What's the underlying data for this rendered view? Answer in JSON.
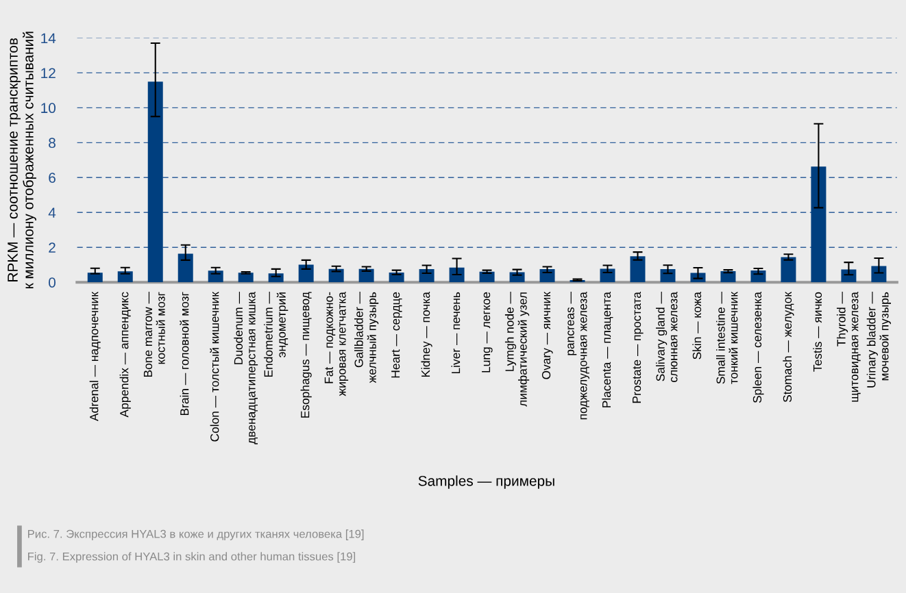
{
  "chart_data": {
    "type": "bar",
    "xlabel": "Samples — примеры",
    "ylabel": "RPKM — соотношение транскриптов\nк миллиону отображенных считываний",
    "categories": [
      "Adrenal — надпочечник",
      "Appendix — аппендикс",
      "Bone marrow —\nкостный мозг",
      "Brain — головной мозг",
      "Colon — толстый кишечник",
      "Duodenum —\nдвенадцатиперстная кишка",
      "Endometrium —\nэндометрий",
      "Esophagus — пищевод",
      "Fat — подкожно-\nжировая клетчатка",
      "Gallbladder —\nжелчный пузырь",
      "Heart — сердце",
      "Kidney — почка",
      "Liver — печень",
      "Lung — легкое",
      "Lymgh node —\nлимфатический узел",
      "Ovary — яичник",
      "pancreas —\nподжелудочная железа",
      "Placenta — плацента",
      "Prostate — простата",
      "Salivary gland —\nслюнная железа",
      "Skin — кожа",
      "Small intestine —\nтонкий кишечник",
      "Spleen — селезенка",
      "Stomach — желудок",
      "Testis — яичко",
      "Thyroid —\nщитовидная железа",
      "Urinary bladder —\nмочевой пузырь"
    ],
    "values": [
      0.55,
      0.63,
      11.5,
      1.64,
      0.67,
      0.55,
      0.51,
      1.01,
      0.76,
      0.76,
      0.56,
      0.75,
      0.84,
      0.61,
      0.58,
      0.75,
      0.13,
      0.77,
      1.49,
      0.75,
      0.54,
      0.64,
      0.68,
      1.44,
      6.63,
      0.73,
      0.93
    ],
    "errors": [
      [
        0.49,
        0.8
      ],
      [
        0.49,
        0.84
      ],
      [
        9.5,
        13.7
      ],
      [
        1.27,
        2.14
      ],
      [
        0.49,
        0.84
      ],
      [
        0.49,
        0.6
      ],
      [
        0.33,
        0.76
      ],
      [
        0.76,
        1.27
      ],
      [
        0.62,
        0.92
      ],
      [
        0.64,
        0.89
      ],
      [
        0.44,
        0.69
      ],
      [
        0.52,
        0.97
      ],
      [
        0.44,
        1.36
      ],
      [
        0.52,
        0.69
      ],
      [
        0.41,
        0.73
      ],
      [
        0.56,
        0.89
      ],
      [
        0.09,
        0.18
      ],
      [
        0.56,
        0.97
      ],
      [
        1.28,
        1.73
      ],
      [
        0.51,
        0.98
      ],
      [
        0.22,
        0.83
      ],
      [
        0.55,
        0.71
      ],
      [
        0.47,
        0.79
      ],
      [
        1.28,
        1.61
      ],
      [
        4.27,
        9.08
      ],
      [
        0.43,
        1.14
      ],
      [
        0.54,
        1.38
      ]
    ],
    "color": "#003f7f",
    "ylim": [
      0,
      14
    ],
    "yticks": [
      0,
      2,
      4,
      6,
      8,
      10,
      12,
      14
    ],
    "grid": "y",
    "annotations": [
      "Рис. 7. Экспрессия HYAL3 в коже и других тканях человека [19]",
      "Fig. 7. Expression of HYAL3 in skin and other human tissues [19]"
    ]
  }
}
